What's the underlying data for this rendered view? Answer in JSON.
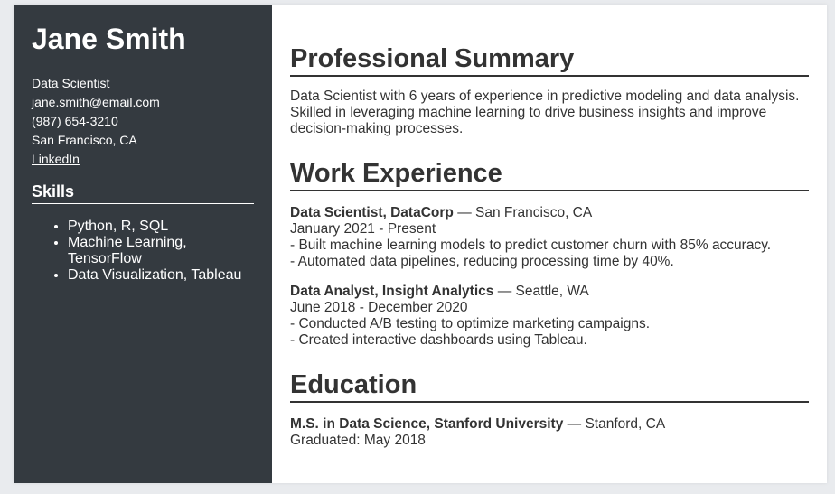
{
  "sidebar": {
    "name": "Jane Smith",
    "contact": {
      "role": "Data Scientist",
      "email": "jane.smith@email.com",
      "phone": "(987) 654-3210",
      "location": "San Francisco, CA",
      "linkedin_label": "LinkedIn"
    },
    "skills_heading": "Skills",
    "skills": [
      "Python, R, SQL",
      "Machine Learning, TensorFlow",
      "Data Visualization, Tableau"
    ]
  },
  "main": {
    "summary": {
      "heading": "Professional Summary",
      "text": "Data Scientist with 6 years of experience in predictive modeling and data analysis. Skilled in leveraging machine learning to drive business insights and improve decision-making processes."
    },
    "experience": {
      "heading": "Work Experience",
      "jobs": [
        {
          "title": "Data Scientist, DataCorp",
          "location": " — San Francisco, CA",
          "dates": "January 2021 - Present",
          "bullets": [
            "- Built machine learning models to predict customer churn with 85% accuracy.",
            "- Automated data pipelines, reducing processing time by 40%."
          ]
        },
        {
          "title": "Data Analyst, Insight Analytics",
          "location": " — Seattle, WA",
          "dates": "June 2018 - December 2020",
          "bullets": [
            "- Conducted A/B testing to optimize marketing campaigns.",
            "- Created interactive dashboards using Tableau."
          ]
        }
      ]
    },
    "education": {
      "heading": "Education",
      "degree": "M.S. in Data Science, Stanford University",
      "location": " — Stanford, CA",
      "graduated": "Graduated: May 2018"
    }
  }
}
